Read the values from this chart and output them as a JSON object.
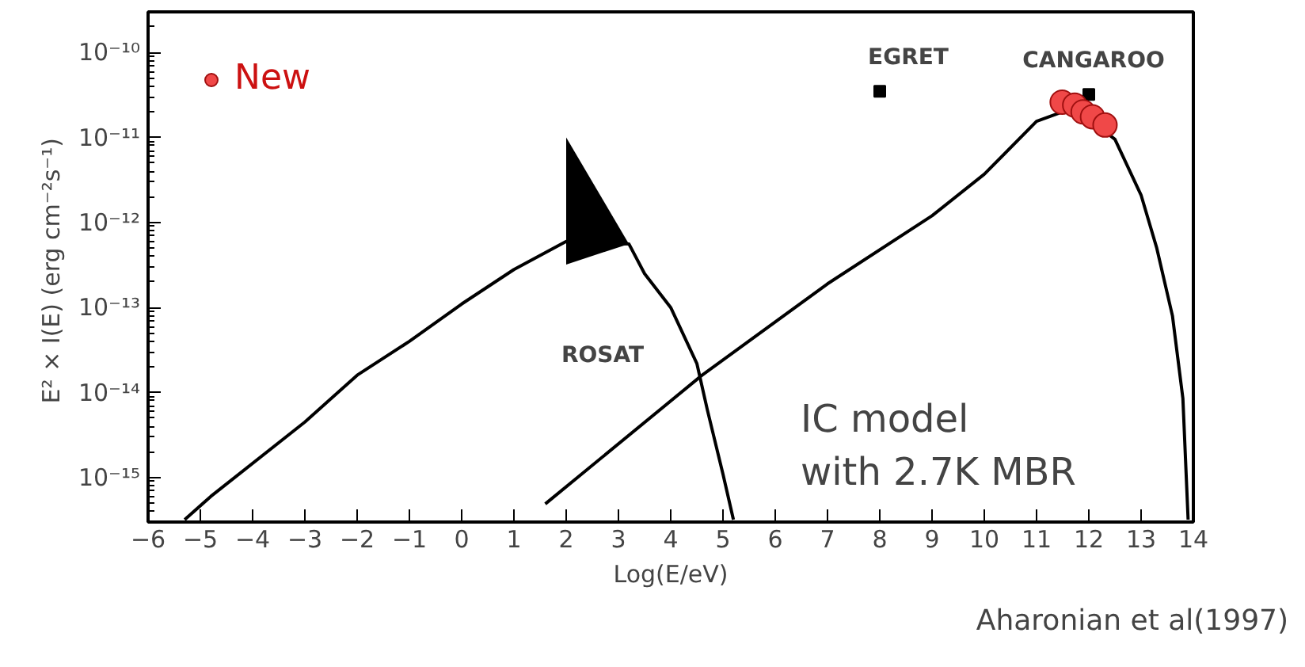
{
  "chart_data": {
    "type": "line",
    "xlabel": "Log(E/eV)",
    "ylabel": "E² × I(E)  (erg cm⁻²s⁻¹)",
    "log": "y",
    "xlim": [
      -6,
      14
    ],
    "ylim": [
      3e-16,
      3e-10
    ],
    "xticks": [
      -6,
      -5,
      -4,
      -3,
      -2,
      -1,
      0,
      1,
      2,
      3,
      4,
      5,
      6,
      7,
      8,
      9,
      10,
      11,
      12,
      13,
      14
    ],
    "yticks": [
      {
        "value": 1e-15,
        "label": "10⁻¹⁵"
      },
      {
        "value": 1e-14,
        "label": "10⁻¹⁴"
      },
      {
        "value": 1e-13,
        "label": "10⁻¹³"
      },
      {
        "value": 1e-12,
        "label": "10⁻¹²"
      },
      {
        "value": 1e-11,
        "label": "10⁻¹¹"
      },
      {
        "value": 1e-10,
        "label": "10⁻¹⁰"
      }
    ],
    "grid": false,
    "legend": "top left",
    "series": [
      {
        "color": "#000000",
        "x": [
          -5.3,
          -4.8,
          -3,
          -2,
          -1,
          0,
          1,
          2,
          3.2,
          3.5,
          4,
          4.5,
          4.7,
          5,
          5.2
        ],
        "values": [
          3.2e-16,
          6e-16,
          4.5e-15,
          1.6e-14,
          4e-14,
          1.1e-13,
          2.8e-13,
          6e-13,
          5.6e-13,
          2.5e-13,
          1e-13,
          2.2e-14,
          6.3e-15,
          1.1e-15,
          3.2e-16
        ],
        "lower": [
          null,
          null,
          null,
          null,
          null,
          null,
          null,
          3.2e-13,
          5.6e-13,
          null,
          null,
          null,
          null,
          null,
          null
        ],
        "upper": [
          null,
          null,
          null,
          null,
          null,
          null,
          null,
          1e-11,
          5.6e-13,
          null,
          null,
          null,
          null,
          null,
          null
        ]
      },
      {
        "color": "#000000",
        "x": [
          1.6,
          4.6,
          7,
          9,
          10,
          11,
          11.5,
          11.7,
          12,
          12.5,
          13,
          13.3,
          13.6,
          13.8,
          13.9
        ],
        "values": [
          4.9e-16,
          1.6e-14,
          1.9e-13,
          1.2e-12,
          3.7e-12,
          1.55e-11,
          2e-11,
          2.2e-11,
          1.65e-11,
          9.5e-12,
          2.1e-12,
          5e-13,
          8e-14,
          8.5e-15,
          3.2e-16
        ]
      },
      {
        "type": "scatter",
        "marker": "square",
        "color": "#000000",
        "x": [
          8,
          12
        ],
        "values": [
          3.5e-11,
          3.2e-11
        ]
      },
      {
        "type": "scatter",
        "marker": "circle",
        "name": "New",
        "color": "#f04848",
        "x": [
          11.49,
          11.73,
          11.89,
          12.07,
          12.31
        ],
        "values": [
          2.6e-11,
          2.4e-11,
          2e-11,
          1.75e-11,
          1.4e-11
        ]
      }
    ],
    "annotations": [
      "EGRET",
      "CANGAROO",
      "ROSAT",
      "IC model\n with 2.7K MBR",
      "Aharonian et al(1997)"
    ]
  }
}
